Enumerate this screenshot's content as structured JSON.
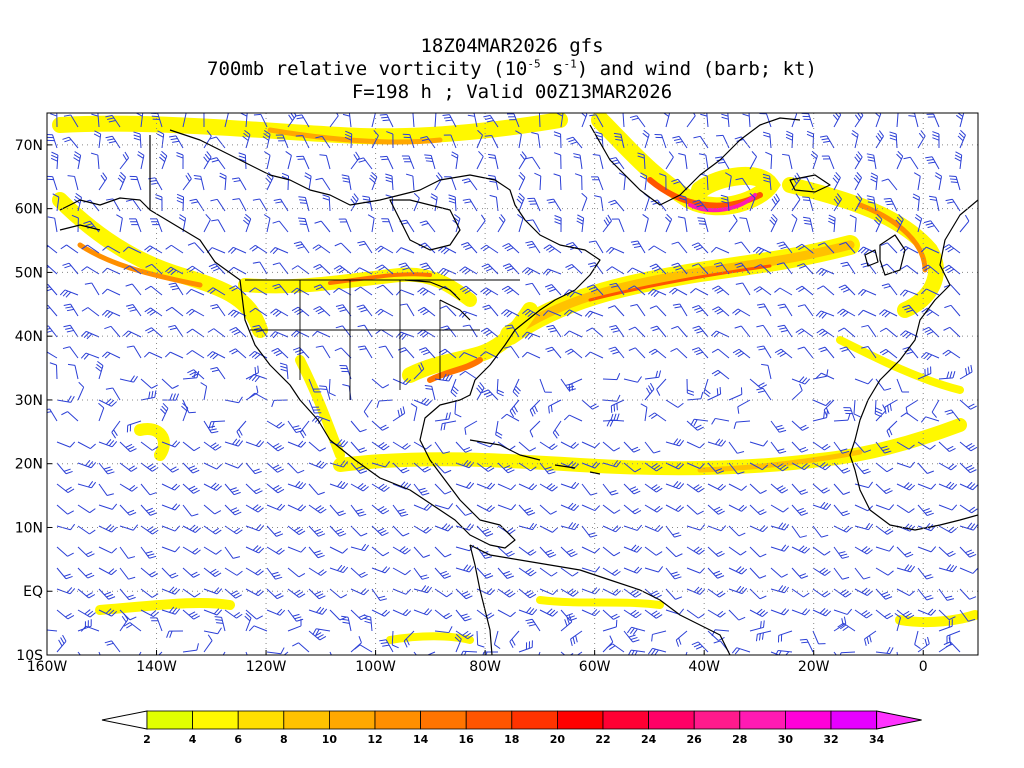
{
  "title": {
    "line1": "18Z04MAR2026 gfs",
    "line2_pre": "700mb relative vorticity (10",
    "line2_exp1": "-5",
    "line2_mid": " s",
    "line2_exp2": "-1",
    "line2_post": ") and wind (barb; kt)",
    "line3": "F=198 h ; Valid 00Z13MAR2026"
  },
  "map": {
    "lon_range": [
      -160,
      10
    ],
    "lat_range": [
      -10,
      75
    ],
    "lat_ticks": [
      {
        "value": 70,
        "label": "70N"
      },
      {
        "value": 60,
        "label": "60N"
      },
      {
        "value": 50,
        "label": "50N"
      },
      {
        "value": 40,
        "label": "40N"
      },
      {
        "value": 30,
        "label": "30N"
      },
      {
        "value": 20,
        "label": "20N"
      },
      {
        "value": 10,
        "label": "10N"
      },
      {
        "value": 0,
        "label": "EQ"
      },
      {
        "value": -10,
        "label": "10S"
      }
    ],
    "lon_ticks": [
      {
        "value": -160,
        "label": "160W"
      },
      {
        "value": -140,
        "label": "140W"
      },
      {
        "value": -120,
        "label": "120W"
      },
      {
        "value": -100,
        "label": "100W"
      },
      {
        "value": -80,
        "label": "80W"
      },
      {
        "value": -60,
        "label": "60W"
      },
      {
        "value": -40,
        "label": "40W"
      },
      {
        "value": -20,
        "label": "20W"
      },
      {
        "value": 0,
        "label": "0"
      }
    ],
    "coast_color": "#000000",
    "barb_color": "#2b3fd6",
    "grid": "dotted"
  },
  "colorbar": {
    "labels": [
      "2",
      "4",
      "6",
      "8",
      "10",
      "12",
      "14",
      "16",
      "18",
      "20",
      "22",
      "24",
      "26",
      "28",
      "30",
      "32",
      "34"
    ],
    "colors": [
      "#e1ff00",
      "#fff800",
      "#ffdf00",
      "#ffc200",
      "#ffa800",
      "#ff8f00",
      "#ff7400",
      "#ff5500",
      "#ff3300",
      "#ff0000",
      "#ff0033",
      "#ff0066",
      "#ff1a8c",
      "#ff1ab3",
      "#ff00d9",
      "#e600ff"
    ],
    "under_color": "#ffffff",
    "over_color": "#ff33ff"
  }
}
